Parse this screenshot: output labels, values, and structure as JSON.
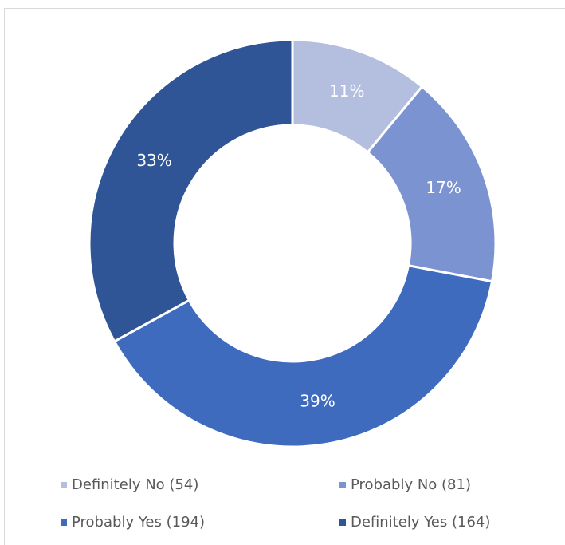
{
  "chart_data": {
    "type": "donut",
    "categories": [
      "Definitely No (54)",
      "Probably No (81)",
      "Probably Yes (194)",
      "Definitely Yes (164)"
    ],
    "values": [
      11,
      17,
      39,
      33
    ],
    "value_labels": [
      "11%",
      "17%",
      "39%",
      "33%"
    ],
    "colors": [
      "#b4bfe0",
      "#7b93d1",
      "#3f6bbf",
      "#2f5597"
    ]
  }
}
